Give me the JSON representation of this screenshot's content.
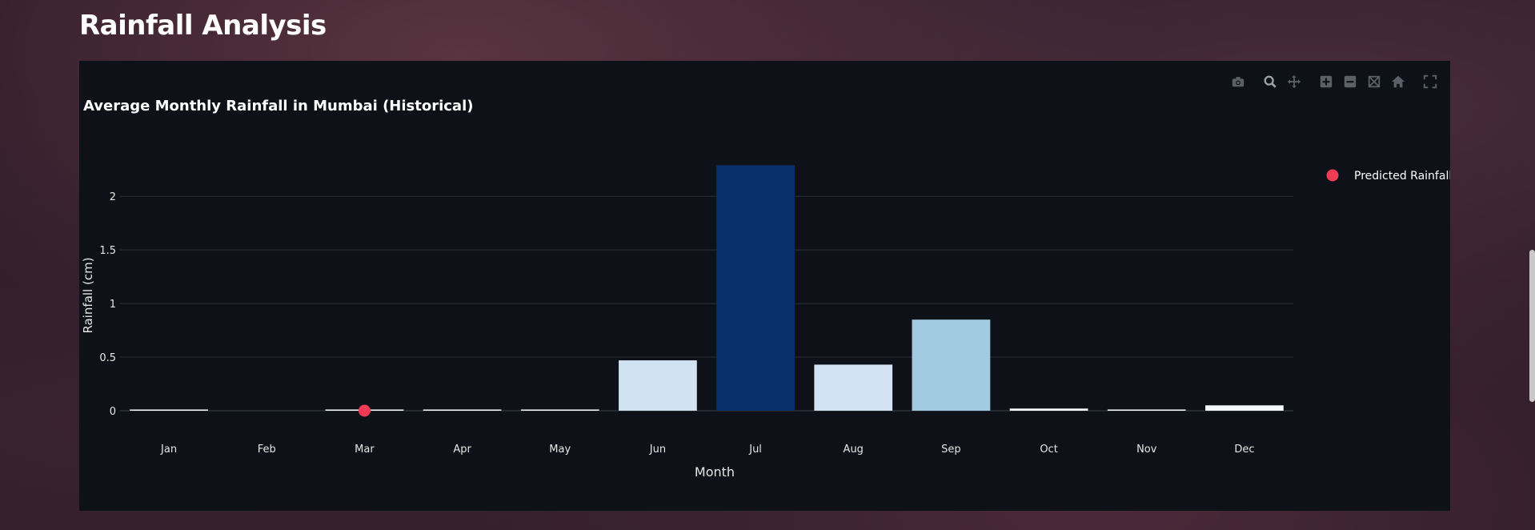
{
  "page": {
    "title": "Rainfall Analysis"
  },
  "modebar": {
    "icons": [
      "camera-icon",
      "zoom-icon",
      "pan-icon",
      "zoom-in-icon",
      "zoom-out-icon",
      "autoscale-icon",
      "home-icon",
      "fullscreen-icon"
    ]
  },
  "chart_data": {
    "type": "bar",
    "title": "Average Monthly Rainfall in Mumbai (Historical)",
    "xlabel": "Month",
    "ylabel": "Rainfall (cm)",
    "categories": [
      "Jan",
      "Feb",
      "Mar",
      "Apr",
      "May",
      "Jun",
      "Jul",
      "Aug",
      "Sep",
      "Oct",
      "Nov",
      "Dec"
    ],
    "values": [
      0.01,
      0.0,
      0.01,
      0.01,
      0.01,
      0.47,
      2.29,
      0.43,
      0.85,
      0.02,
      0.01,
      0.05
    ],
    "bar_colors": [
      "#f7fbff",
      "#f7fbff",
      "#f7fbff",
      "#f7fbff",
      "#f7fbff",
      "#d1e2f3",
      "#08306b",
      "#d3e3f3",
      "#a2cbe2",
      "#f7fbff",
      "#f7fbff",
      "#f4f9fe"
    ],
    "ylim": [
      0,
      2.45
    ],
    "yticks": [
      0,
      0.5,
      1,
      1.5,
      2
    ],
    "ytick_labels": [
      "0",
      "0.5",
      "1",
      "1.5",
      "2"
    ],
    "grid": true,
    "legend_position": "top-right",
    "overlay": {
      "type": "scatter",
      "name": "Predicted Rainfall",
      "x": [
        "Mar"
      ],
      "y": [
        0
      ],
      "color": "#ef3b55"
    }
  }
}
